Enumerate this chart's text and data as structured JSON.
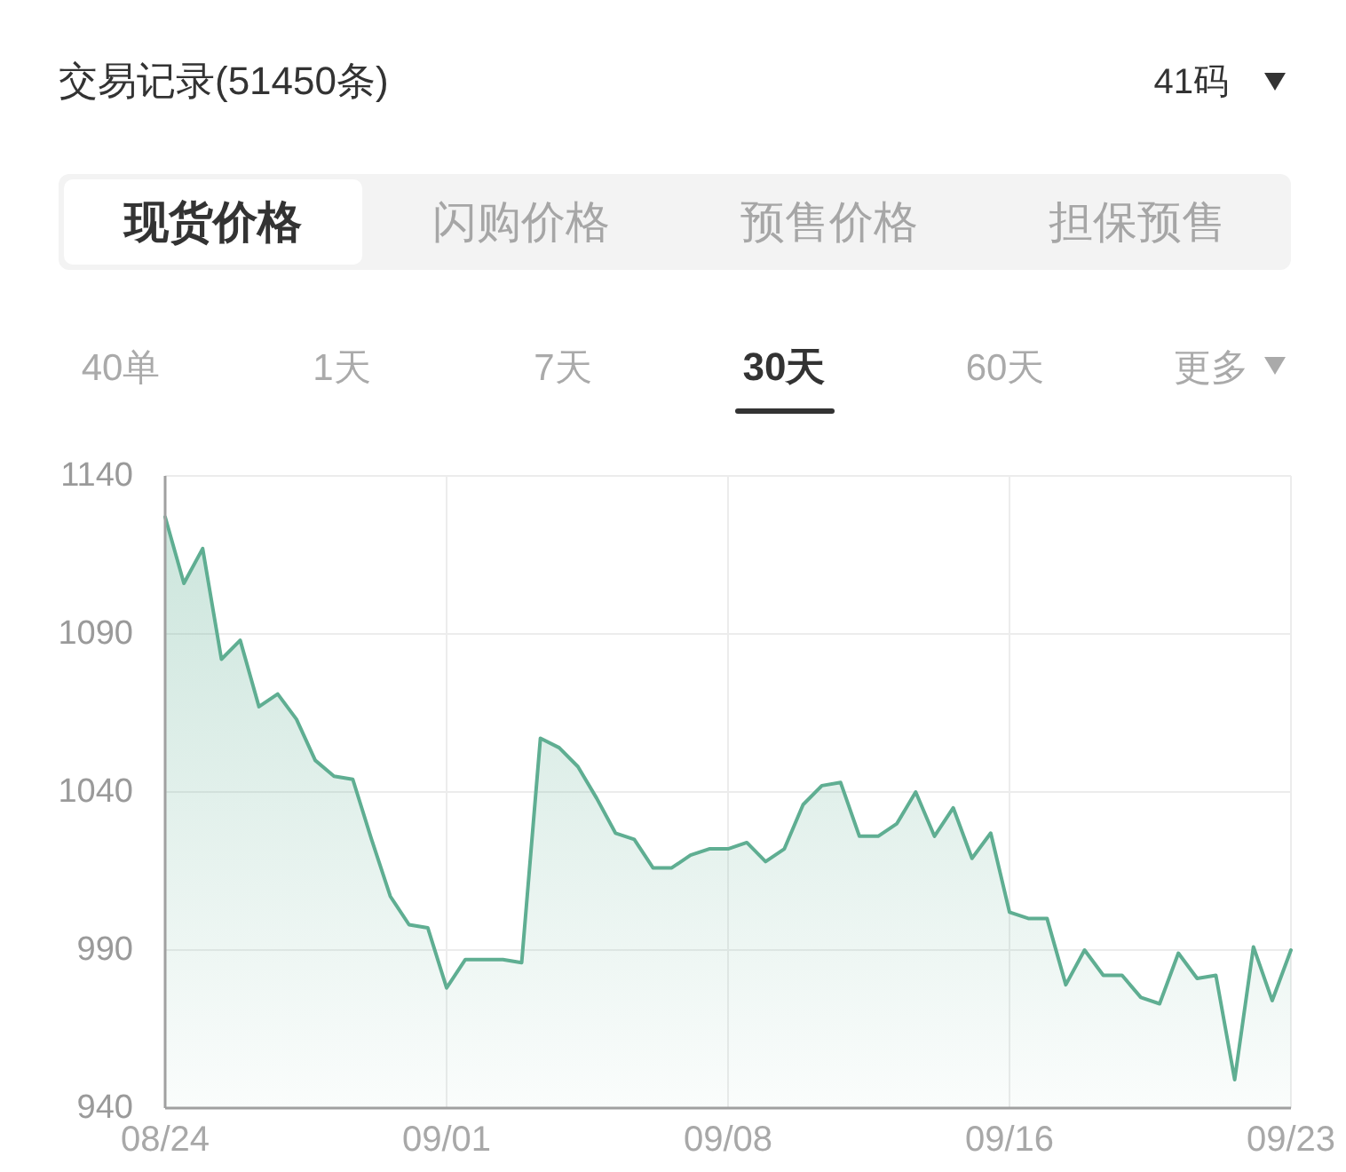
{
  "chart_data": {
    "type": "area",
    "title": "交易记录(51450条)",
    "annotations": [
      "41码",
      "现货价格",
      "闪购价格",
      "预售价格",
      "担保预售",
      "40单",
      "1天",
      "7天",
      "30天",
      "60天",
      "更多"
    ],
    "categories": [
      "08/24",
      null,
      null,
      null,
      null,
      null,
      null,
      null,
      null,
      null,
      null,
      null,
      null,
      null,
      null,
      "09/01",
      null,
      null,
      null,
      null,
      null,
      null,
      null,
      null,
      null,
      null,
      null,
      null,
      null,
      null,
      "09/08",
      null,
      null,
      null,
      null,
      null,
      null,
      null,
      null,
      null,
      null,
      null,
      null,
      null,
      null,
      "09/16",
      null,
      null,
      null,
      null,
      null,
      null,
      null,
      null,
      null,
      null,
      null,
      null,
      null,
      null,
      "09/23"
    ],
    "values": [
      1127,
      1106,
      1117,
      1082,
      1088,
      1067,
      1071,
      1063,
      1050,
      1045,
      1044,
      1025,
      1007,
      998,
      997,
      978,
      987,
      987,
      987,
      986,
      1057,
      1054,
      1048,
      1038,
      1027,
      1025,
      1016,
      1016,
      1020,
      1022,
      1022,
      1024,
      1018,
      1022,
      1036,
      1042,
      1043,
      1026,
      1026,
      1030,
      1040,
      1026,
      1035,
      1019,
      1027,
      1002,
      1000,
      1000,
      979,
      990,
      982,
      982,
      975,
      973,
      989,
      981,
      982,
      949,
      991,
      974,
      990
    ],
    "color": "#5fae92",
    "ylim": [
      940,
      1140
    ],
    "yticks": [
      940,
      990,
      1040,
      1090,
      1140
    ],
    "grid": true
  }
}
